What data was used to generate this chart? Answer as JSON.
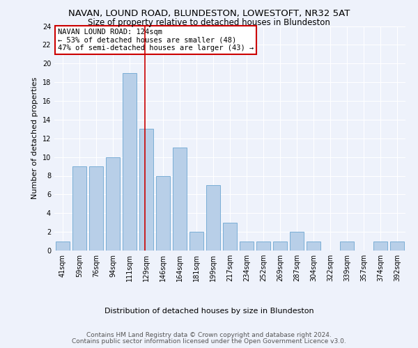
{
  "title": "NAVAN, LOUND ROAD, BLUNDESTON, LOWESTOFT, NR32 5AT",
  "subtitle": "Size of property relative to detached houses in Blundeston",
  "xlabel": "Distribution of detached houses by size in Blundeston",
  "ylabel": "Number of detached properties",
  "bin_labels": [
    "41sqm",
    "59sqm",
    "76sqm",
    "94sqm",
    "111sqm",
    "129sqm",
    "146sqm",
    "164sqm",
    "181sqm",
    "199sqm",
    "217sqm",
    "234sqm",
    "252sqm",
    "269sqm",
    "287sqm",
    "304sqm",
    "322sqm",
    "339sqm",
    "357sqm",
    "374sqm",
    "392sqm"
  ],
  "bar_heights": [
    1,
    9,
    9,
    10,
    19,
    13,
    8,
    11,
    2,
    7,
    3,
    1,
    1,
    1,
    2,
    1,
    0,
    1,
    0,
    1,
    1
  ],
  "bar_color": "#b8cfe8",
  "bar_edgecolor": "#7aaed6",
  "ylim": [
    0,
    24
  ],
  "yticks": [
    0,
    2,
    4,
    6,
    8,
    10,
    12,
    14,
    16,
    18,
    20,
    22,
    24
  ],
  "property_bin_index": 5,
  "vline_color": "#cc0000",
  "annotation_title": "NAVAN LOUND ROAD: 124sqm",
  "annotation_line1": "← 53% of detached houses are smaller (48)",
  "annotation_line2": "47% of semi-detached houses are larger (43) →",
  "annotation_box_color": "#ffffff",
  "annotation_box_edgecolor": "#cc0000",
  "footer_line1": "Contains HM Land Registry data © Crown copyright and database right 2024.",
  "footer_line2": "Contains public sector information licensed under the Open Government Licence v3.0.",
  "background_color": "#eef2fb",
  "grid_color": "#ffffff",
  "title_fontsize": 9.5,
  "subtitle_fontsize": 8.5,
  "xlabel_fontsize": 8,
  "ylabel_fontsize": 8,
  "tick_fontsize": 7,
  "footer_fontsize": 6.5,
  "annotation_fontsize": 7.5
}
